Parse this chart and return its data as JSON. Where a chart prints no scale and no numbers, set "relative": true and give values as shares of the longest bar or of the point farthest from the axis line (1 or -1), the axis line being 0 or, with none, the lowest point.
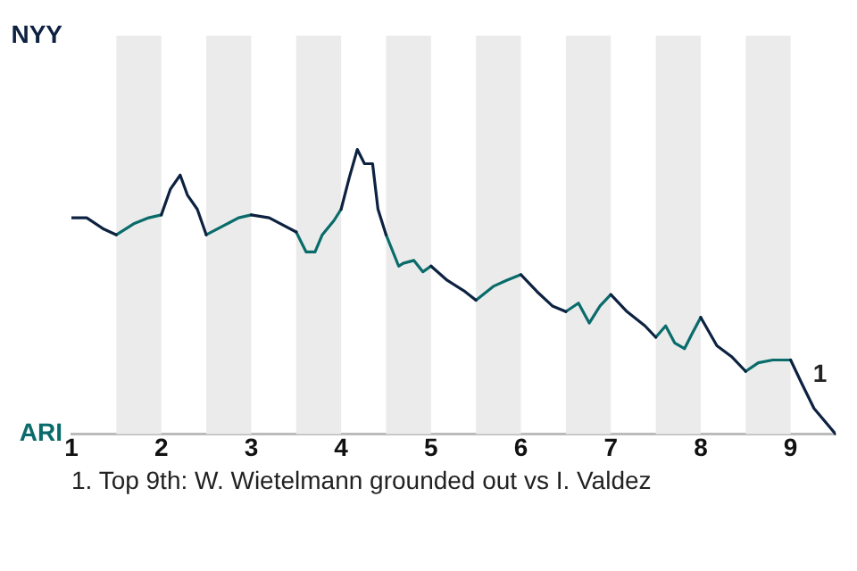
{
  "chart_data": {
    "type": "line",
    "relative": true,
    "x": [
      1,
      1.17,
      1.36,
      1.5,
      1.7,
      1.86,
      2,
      2.1,
      2.21,
      2.29,
      2.4,
      2.5,
      2.68,
      2.86,
      3,
      3.2,
      3.5,
      3.61,
      3.71,
      3.79,
      3.92,
      4,
      4.09,
      4.18,
      4.26,
      4.35,
      4.41,
      4.5,
      4.64,
      4.69,
      4.81,
      4.91,
      5,
      5.18,
      5.38,
      5.5,
      5.7,
      5.84,
      6,
      6.18,
      6.35,
      6.5,
      6.64,
      6.76,
      6.88,
      7,
      7.18,
      7.38,
      7.5,
      7.61,
      7.71,
      7.82,
      7.9,
      8,
      8.18,
      8.35,
      8.5,
      8.64,
      8.8,
      9,
      9.12,
      9.26,
      9.5
    ],
    "series": [
      {
        "name": "NYY",
        "color": "#0d2240",
        "values": [
          0.76,
          0.76,
          0.72,
          0.7,
          null,
          null,
          0.77,
          0.86,
          0.91,
          0.84,
          0.79,
          0.7,
          null,
          null,
          0.77,
          0.76,
          0.71,
          null,
          null,
          null,
          null,
          0.79,
          0.9,
          1,
          0.95,
          0.95,
          0.79,
          0.7,
          null,
          null,
          null,
          null,
          0.59,
          0.54,
          0.5,
          0.47,
          null,
          null,
          0.56,
          0.5,
          0.45,
          0.43,
          null,
          null,
          null,
          0.49,
          0.43,
          0.38,
          0.34,
          null,
          null,
          null,
          null,
          0.41,
          0.31,
          0.27,
          0.22,
          null,
          null,
          0.26,
          0.18,
          0.09,
          0
        ]
      },
      {
        "name": "ARI",
        "color": "#0a6b6b",
        "values": [
          null,
          null,
          null,
          0.7,
          0.74,
          0.76,
          0.77,
          null,
          null,
          null,
          null,
          0.7,
          0.73,
          0.76,
          0.77,
          null,
          0.71,
          0.64,
          0.64,
          0.7,
          0.75,
          0.79,
          null,
          null,
          null,
          null,
          null,
          0.7,
          0.59,
          0.6,
          0.61,
          0.57,
          0.59,
          null,
          null,
          0.47,
          0.52,
          0.54,
          0.56,
          null,
          null,
          0.43,
          0.46,
          0.39,
          0.45,
          0.49,
          null,
          null,
          0.34,
          0.38,
          0.32,
          0.3,
          0.35,
          0.41,
          null,
          null,
          0.22,
          0.25,
          0.26,
          0.26,
          null,
          null,
          null
        ]
      }
    ],
    "xlim": [
      1,
      9.5
    ],
    "xticks": [
      1,
      2,
      3,
      4,
      5,
      6,
      7,
      8,
      9
    ],
    "tick_labels": "x",
    "legend": "left",
    "marker": "none",
    "bands": [
      {
        "axis": "x",
        "from": 1.5,
        "to": 2,
        "color": "#ebebeb"
      },
      {
        "axis": "x",
        "from": 2.5,
        "to": 3,
        "color": "#ebebeb"
      },
      {
        "axis": "x",
        "from": 3.5,
        "to": 4,
        "color": "#ebebeb"
      },
      {
        "axis": "x",
        "from": 4.5,
        "to": 5,
        "color": "#ebebeb"
      },
      {
        "axis": "x",
        "from": 5.5,
        "to": 6,
        "color": "#ebebeb"
      },
      {
        "axis": "x",
        "from": 6.5,
        "to": 7,
        "color": "#ebebeb"
      },
      {
        "axis": "x",
        "from": 7.5,
        "to": 8,
        "color": "#ebebeb"
      },
      {
        "axis": "x",
        "from": 8.5,
        "to": 9,
        "color": "#ebebeb"
      }
    ],
    "annotations": [
      {
        "text": "1",
        "x": 9.19,
        "y": 0.15
      },
      "1. Top 9th: W. Wietelmann grounded out vs I. Valdez"
    ]
  }
}
